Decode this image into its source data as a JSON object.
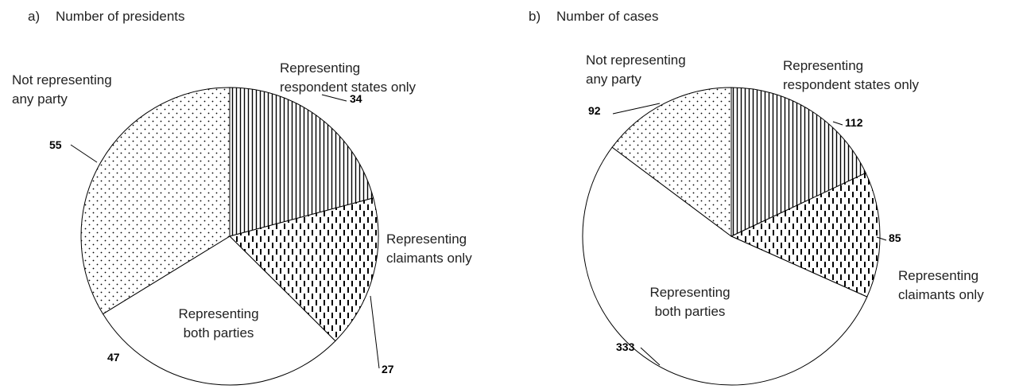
{
  "chart_data": [
    {
      "type": "pie",
      "panel": "a)",
      "title": "Number of presidents",
      "categories": [
        "Representing\nrespondent states only",
        "Representing\nclaimants only",
        "Representing\nboth parties",
        "Not representing\nany party"
      ],
      "values": [
        34,
        27,
        47,
        55
      ],
      "patterns": [
        "vertical-lines",
        "dashed-lines",
        "none",
        "dots"
      ]
    },
    {
      "type": "pie",
      "panel": "b)",
      "title": "Number of cases",
      "categories": [
        "Representing\nrespondent states only",
        "Representing\nclaimants only",
        "Representing\nboth parties",
        "Not representing\nany party"
      ],
      "values": [
        112,
        85,
        333,
        92
      ],
      "patterns": [
        "vertical-lines",
        "dashed-lines",
        "none",
        "dots"
      ]
    }
  ]
}
